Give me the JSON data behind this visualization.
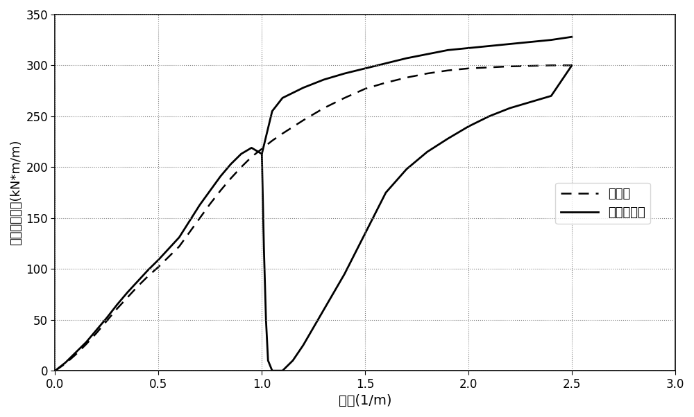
{
  "title": "",
  "xlabel": "曲率(1/m)",
  "ylabel": "单位宽度弯矩(kN*m/m)",
  "xlim": [
    0,
    3
  ],
  "ylim": [
    0,
    350
  ],
  "xticks": [
    0,
    0.5,
    1.0,
    1.5,
    2.0,
    2.5,
    3.0
  ],
  "yticks": [
    0,
    50,
    100,
    150,
    200,
    250,
    300,
    350
  ],
  "legend_labels": [
    "碳钙板",
    "铝钙复合板"
  ],
  "background_color": "#ffffff",
  "line_color": "#000000",
  "grid_color": "#808080",
  "carbon_steel_x": [
    0,
    0.05,
    0.1,
    0.15,
    0.2,
    0.25,
    0.3,
    0.35,
    0.4,
    0.45,
    0.5,
    0.55,
    0.6,
    0.65,
    0.7,
    0.75,
    0.8,
    0.85,
    0.9,
    0.95,
    1.0,
    1.05,
    1.1,
    1.2,
    1.3,
    1.4,
    1.5,
    1.6,
    1.7,
    1.8,
    1.9,
    2.0,
    2.1,
    2.2,
    2.3,
    2.4,
    2.5
  ],
  "carbon_steel_y": [
    0,
    7,
    16,
    26,
    37,
    49,
    61,
    72,
    83,
    93,
    102,
    112,
    122,
    136,
    150,
    164,
    177,
    189,
    200,
    210,
    218,
    226,
    233,
    246,
    258,
    268,
    277,
    283,
    288,
    292,
    295,
    297,
    298,
    299,
    299.5,
    300,
    300
  ],
  "composite_upper_x": [
    0,
    0.05,
    0.1,
    0.15,
    0.2,
    0.25,
    0.3,
    0.35,
    0.4,
    0.45,
    0.5,
    0.55,
    0.6,
    0.65,
    0.7,
    0.75,
    0.8,
    0.85,
    0.9,
    0.95,
    1.0,
    1.05,
    1.1,
    1.2,
    1.3,
    1.4,
    1.5,
    1.6,
    1.7,
    1.8,
    1.9,
    2.0,
    2.1,
    2.2,
    2.3,
    2.4,
    2.5
  ],
  "composite_upper_y": [
    0,
    8,
    18,
    28,
    40,
    52,
    65,
    77,
    88,
    99,
    109,
    120,
    131,
    147,
    163,
    177,
    191,
    203,
    213,
    219,
    213,
    255,
    268,
    278,
    286,
    292,
    297,
    302,
    307,
    311,
    315,
    317,
    319,
    321,
    323,
    325,
    328
  ],
  "composite_lower_x": [
    1.0,
    1.01,
    1.02,
    1.03,
    1.05,
    1.1,
    1.15,
    1.2,
    1.3,
    1.4,
    1.5,
    1.6,
    1.7,
    1.8,
    1.9,
    2.0,
    2.1,
    2.2,
    2.3,
    2.4,
    2.5
  ],
  "composite_lower_y": [
    213,
    120,
    50,
    10,
    0,
    0,
    10,
    25,
    60,
    95,
    135,
    175,
    198,
    215,
    228,
    240,
    250,
    258,
    264,
    270,
    300
  ]
}
